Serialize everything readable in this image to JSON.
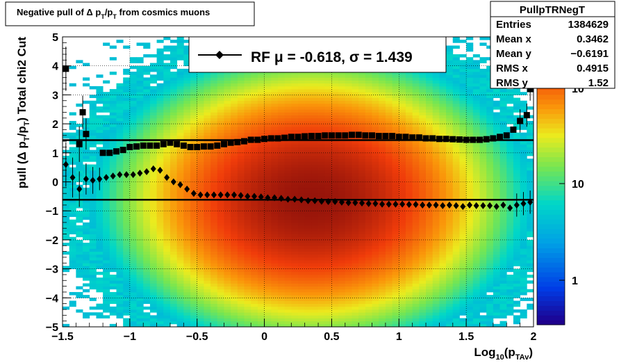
{
  "title_box": {
    "text": "Negative pull of Δ p_T/p_T from cosmics muons"
  },
  "stats_box": {
    "name": "PullpTRNegT",
    "rows": [
      {
        "label": "Entries",
        "value": "1384629"
      },
      {
        "label": "Mean x",
        "value": "0.3462"
      },
      {
        "label": "Mean y",
        "value": "−0.6191"
      },
      {
        "label": "RMS x",
        "value": "0.4915"
      },
      {
        "label": "RMS y",
        "value": "1.52"
      }
    ]
  },
  "legend": {
    "entry": "RF μ = -0.618, σ =   1.439"
  },
  "colors": {
    "frame": "#000000",
    "markers": "#000000",
    "background": "#ffffff"
  },
  "chart_data": {
    "type": "heatmap",
    "title": "Negative pull of Δ p_T/p_T from cosmics muons",
    "xlabel": "Log10(pTAv)",
    "ylabel": "pull (Δ pT/pT)  Total chi2 Cut",
    "xlim": [
      -1.5,
      2.0
    ],
    "ylim": [
      -5,
      5
    ],
    "x_ticks": [
      -1.5,
      -1,
      -0.5,
      0,
      0.5,
      1,
      1.5,
      2
    ],
    "x_tick_labels": [
      "−1.5",
      "−1",
      "−0.5",
      "0",
      "0.5",
      "1",
      "1.5",
      "2"
    ],
    "y_ticks": [
      -5,
      -4,
      -3,
      -2,
      -1,
      0,
      1,
      2,
      3,
      4,
      5
    ],
    "y_tick_labels": [
      "−5",
      "−4",
      "−3",
      "−2",
      "−1",
      "0",
      "1",
      "2",
      "3",
      "4",
      "5"
    ],
    "z_scale": "log",
    "z_ticks": [
      1,
      10
    ],
    "z_tick_labels": [
      "1",
      "10"
    ],
    "grid": true,
    "density": {
      "center_x": 0.35,
      "center_y": -0.6,
      "rms_x": 0.49,
      "rms_y": 1.52,
      "peak": 300
    },
    "fit_lines": [
      {
        "name": "sigma",
        "value": 1.439
      },
      {
        "name": "mean",
        "value": -0.618
      }
    ],
    "series": [
      {
        "name": "sigma",
        "marker": "square",
        "points": [
          [
            -1.475,
            3.9
          ],
          [
            -1.375,
            1.3
          ],
          [
            -1.35,
            2.4
          ],
          [
            -1.325,
            1.65
          ],
          [
            -1.2,
            1.0
          ],
          [
            -1.15,
            1.0
          ],
          [
            -1.1,
            1.05
          ],
          [
            -1.05,
            1.1
          ],
          [
            -1.0,
            1.2
          ],
          [
            -0.95,
            1.22
          ],
          [
            -0.9,
            1.25
          ],
          [
            -0.85,
            1.25
          ],
          [
            -0.8,
            1.25
          ],
          [
            -0.75,
            1.3
          ],
          [
            -0.7,
            1.35
          ],
          [
            -0.65,
            1.3
          ],
          [
            -0.6,
            1.25
          ],
          [
            -0.55,
            1.2
          ],
          [
            -0.5,
            1.2
          ],
          [
            -0.45,
            1.22
          ],
          [
            -0.4,
            1.22
          ],
          [
            -0.35,
            1.25
          ],
          [
            -0.3,
            1.3
          ],
          [
            -0.25,
            1.35
          ],
          [
            -0.2,
            1.37
          ],
          [
            -0.15,
            1.4
          ],
          [
            -0.1,
            1.45
          ],
          [
            -0.05,
            1.45
          ],
          [
            0.0,
            1.48
          ],
          [
            0.05,
            1.5
          ],
          [
            0.1,
            1.5
          ],
          [
            0.15,
            1.52
          ],
          [
            0.2,
            1.55
          ],
          [
            0.25,
            1.55
          ],
          [
            0.3,
            1.57
          ],
          [
            0.35,
            1.58
          ],
          [
            0.4,
            1.58
          ],
          [
            0.45,
            1.6
          ],
          [
            0.5,
            1.6
          ],
          [
            0.55,
            1.6
          ],
          [
            0.6,
            1.6
          ],
          [
            0.65,
            1.62
          ],
          [
            0.7,
            1.62
          ],
          [
            0.75,
            1.6
          ],
          [
            0.8,
            1.6
          ],
          [
            0.85,
            1.58
          ],
          [
            0.9,
            1.58
          ],
          [
            0.95,
            1.58
          ],
          [
            1.0,
            1.55
          ],
          [
            1.05,
            1.55
          ],
          [
            1.1,
            1.53
          ],
          [
            1.15,
            1.53
          ],
          [
            1.2,
            1.5
          ],
          [
            1.25,
            1.5
          ],
          [
            1.3,
            1.48
          ],
          [
            1.35,
            1.48
          ],
          [
            1.4,
            1.47
          ],
          [
            1.45,
            1.46
          ],
          [
            1.5,
            1.45
          ],
          [
            1.55,
            1.45
          ],
          [
            1.6,
            1.45
          ],
          [
            1.65,
            1.47
          ],
          [
            1.7,
            1.5
          ],
          [
            1.75,
            1.55
          ],
          [
            1.8,
            1.6
          ],
          [
            1.85,
            1.8
          ],
          [
            1.9,
            2.1
          ],
          [
            1.95,
            2.3
          ],
          [
            1.975,
            3.2
          ]
        ]
      },
      {
        "name": "mean",
        "marker": "diamond",
        "points": [
          [
            -1.475,
            0.6
          ],
          [
            -1.425,
            0.15
          ],
          [
            -1.375,
            -0.25
          ],
          [
            -1.325,
            0.1
          ],
          [
            -1.275,
            0.05
          ],
          [
            -1.225,
            0.1
          ],
          [
            -1.175,
            0.15
          ],
          [
            -1.125,
            0.2
          ],
          [
            -1.075,
            0.25
          ],
          [
            -1.025,
            0.25
          ],
          [
            -0.975,
            0.25
          ],
          [
            -0.925,
            0.3
          ],
          [
            -0.875,
            0.35
          ],
          [
            -0.825,
            0.45
          ],
          [
            -0.775,
            0.4
          ],
          [
            -0.725,
            0.15
          ],
          [
            -0.675,
            0.0
          ],
          [
            -0.625,
            -0.1
          ],
          [
            -0.575,
            -0.25
          ],
          [
            -0.525,
            -0.4
          ],
          [
            -0.475,
            -0.45
          ],
          [
            -0.425,
            -0.45
          ],
          [
            -0.375,
            -0.45
          ],
          [
            -0.325,
            -0.45
          ],
          [
            -0.275,
            -0.45
          ],
          [
            -0.225,
            -0.45
          ],
          [
            -0.175,
            -0.47
          ],
          [
            -0.125,
            -0.5
          ],
          [
            -0.075,
            -0.5
          ],
          [
            -0.025,
            -0.52
          ],
          [
            0.025,
            -0.55
          ],
          [
            0.075,
            -0.55
          ],
          [
            0.125,
            -0.57
          ],
          [
            0.175,
            -0.6
          ],
          [
            0.225,
            -0.6
          ],
          [
            0.275,
            -0.62
          ],
          [
            0.325,
            -0.65
          ],
          [
            0.375,
            -0.65
          ],
          [
            0.425,
            -0.67
          ],
          [
            0.475,
            -0.68
          ],
          [
            0.525,
            -0.68
          ],
          [
            0.575,
            -0.7
          ],
          [
            0.625,
            -0.72
          ],
          [
            0.675,
            -0.72
          ],
          [
            0.725,
            -0.73
          ],
          [
            0.775,
            -0.75
          ],
          [
            0.825,
            -0.75
          ],
          [
            0.875,
            -0.77
          ],
          [
            0.925,
            -0.77
          ],
          [
            0.975,
            -0.77
          ],
          [
            1.025,
            -0.77
          ],
          [
            1.075,
            -0.78
          ],
          [
            1.125,
            -0.78
          ],
          [
            1.175,
            -0.8
          ],
          [
            1.225,
            -0.8
          ],
          [
            1.275,
            -0.8
          ],
          [
            1.325,
            -0.82
          ],
          [
            1.375,
            -0.8
          ],
          [
            1.425,
            -0.82
          ],
          [
            1.475,
            -0.85
          ],
          [
            1.525,
            -0.8
          ],
          [
            1.575,
            -0.82
          ],
          [
            1.625,
            -0.82
          ],
          [
            1.675,
            -0.82
          ],
          [
            1.725,
            -0.85
          ],
          [
            1.775,
            -0.8
          ],
          [
            1.825,
            -0.9
          ],
          [
            1.875,
            -0.8
          ],
          [
            1.925,
            -0.75
          ],
          [
            1.975,
            -0.7
          ]
        ]
      }
    ]
  }
}
